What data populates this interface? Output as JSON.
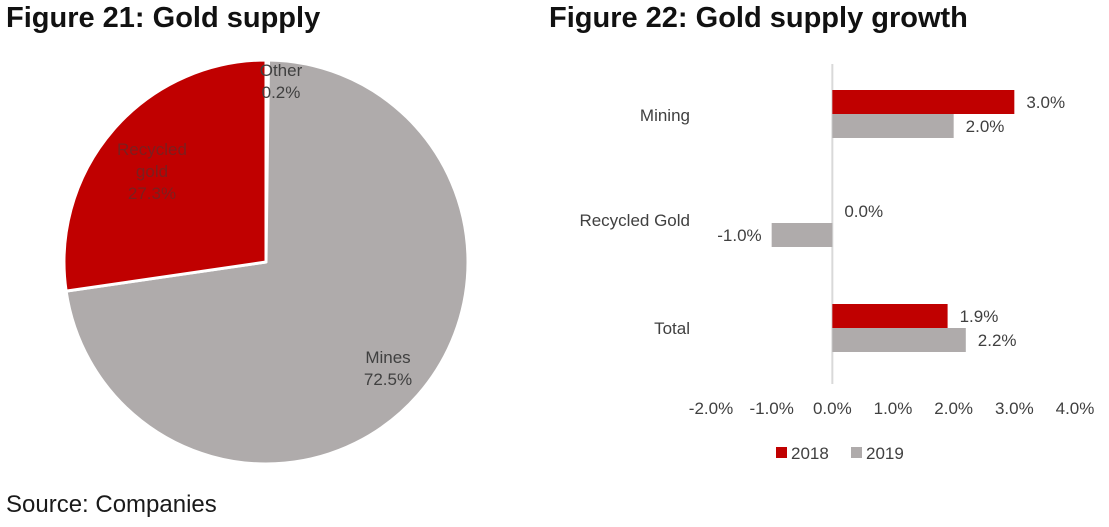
{
  "source": "Source: Companies",
  "colors": {
    "red": "#c00000",
    "grey": "#afabab",
    "axis": "#d9d9d9",
    "text": "#404040"
  },
  "chart_data": [
    {
      "type": "pie",
      "title": "Figure 21: Gold supply",
      "slices": [
        {
          "label": "Other",
          "value": 0.2,
          "value_label": "0.2%",
          "color": "#afabab"
        },
        {
          "label": "Mines",
          "value": 72.5,
          "value_label": "72.5%",
          "color": "#afabab"
        },
        {
          "label": "Recycled gold",
          "label_lines": [
            "Recycled",
            "gold"
          ],
          "value": 27.3,
          "value_label": "27.3%",
          "color": "#c00000"
        }
      ]
    },
    {
      "type": "bar",
      "orientation": "horizontal",
      "title": "Figure 22: Gold supply growth",
      "categories": [
        "Mining",
        "Recycled Gold",
        "Total"
      ],
      "series": [
        {
          "name": "2018",
          "color": "#c00000",
          "values": [
            3.0,
            0.0,
            1.9
          ],
          "labels": [
            "3.0%",
            "0.0%",
            "1.9%"
          ]
        },
        {
          "name": "2019",
          "color": "#afabab",
          "values": [
            2.0,
            -1.0,
            2.2
          ],
          "labels": [
            "2.0%",
            "-1.0%",
            "2.2%"
          ]
        }
      ],
      "xlim": [
        -2.0,
        4.0
      ],
      "xticks": [
        "-2.0%",
        "-1.0%",
        "0.0%",
        "1.0%",
        "2.0%",
        "3.0%",
        "4.0%"
      ],
      "legend": "bottom",
      "grid": false
    }
  ]
}
